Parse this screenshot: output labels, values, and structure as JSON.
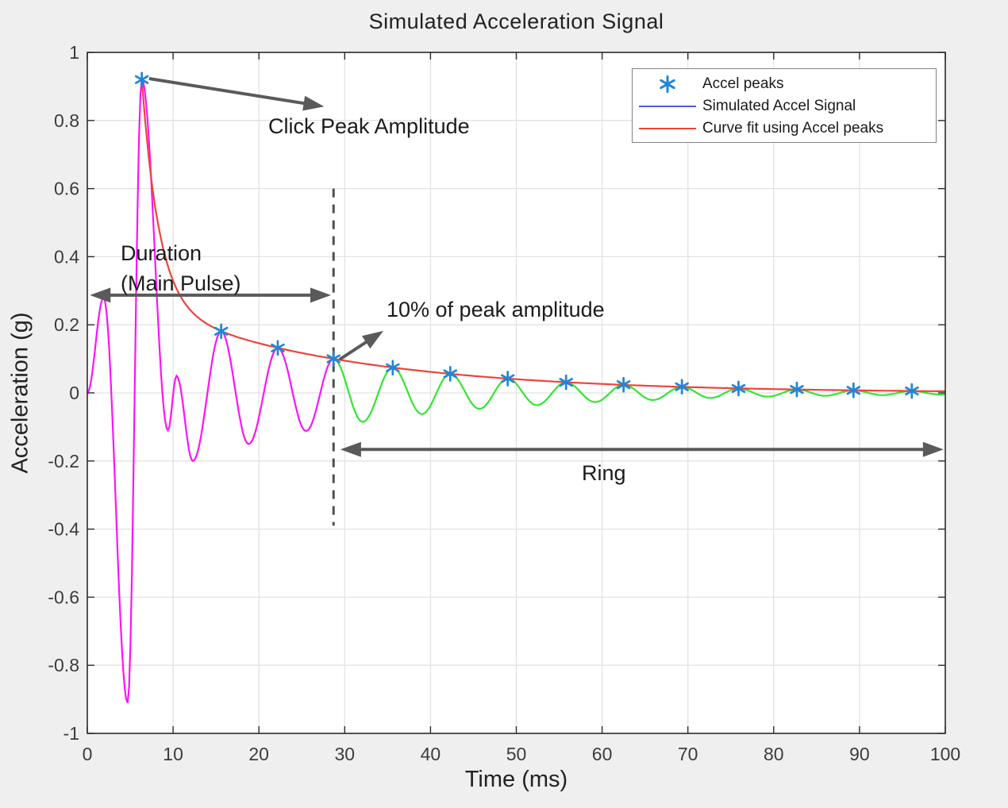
{
  "title": "Simulated Acceleration Signal",
  "axes": {
    "xlabel": "Time (ms)",
    "ylabel": "Acceleration (g)"
  },
  "legend": {
    "entries": [
      {
        "label": "Accel peaks",
        "marker": "asterisk"
      },
      {
        "label": "Simulated Accel Signal",
        "marker": "line"
      },
      {
        "label": "Curve fit using Accel peaks",
        "marker": "line"
      }
    ]
  },
  "annotations": {
    "click_peak": "Click Peak Amplitude",
    "duration_line1": "Duration",
    "duration_line2": "(Main Pulse)",
    "ten_percent": "10% of peak amplitude",
    "ring": "Ring"
  },
  "colors": {
    "peaks_marker": "#1f86d8",
    "signal_legend_line": "#5457e8",
    "fit_line": "#ee443b",
    "main_pulse": "#fa14fa",
    "ring_segment": "#33e633",
    "arrow": "#5a5a5a",
    "dashed_line": "#4f4f4f",
    "grid": "#e2e2e2",
    "axis": "#2b2b2b"
  },
  "chart_data": {
    "type": "line",
    "title": "Simulated Acceleration Signal",
    "xlabel": "Time (ms)",
    "ylabel": "Acceleration (g)",
    "xlim": [
      0,
      100
    ],
    "ylim": [
      -1,
      1
    ],
    "xticks": [
      0,
      10,
      20,
      30,
      40,
      50,
      60,
      70,
      80,
      90,
      100
    ],
    "yticks": [
      -1,
      -0.8,
      -0.6,
      -0.4,
      -0.2,
      0,
      0.2,
      0.4,
      0.6,
      0.8,
      1
    ],
    "grid": true,
    "legend_position": "top-right",
    "split_time_ms": 28.7,
    "series": [
      {
        "name": "Simulated Accel Signal",
        "style": "oscillation-through-extrema",
        "color_main_pulse": "#fa14fa",
        "color_ring": "#33e633",
        "extrema": [
          [
            0,
            0
          ],
          [
            1.9,
            0.28
          ],
          [
            4.7,
            -0.91
          ],
          [
            6.35,
            0.92
          ],
          [
            9.4,
            -0.11
          ],
          [
            10.4,
            0.05
          ],
          [
            12.3,
            -0.2
          ],
          [
            15.6,
            0.181
          ],
          [
            18.8,
            -0.15
          ],
          [
            22.2,
            0.132
          ],
          [
            25.5,
            -0.112
          ],
          [
            28.7,
            0.1
          ],
          [
            32.1,
            -0.085
          ],
          [
            35.6,
            0.074
          ],
          [
            39,
            -0.062
          ],
          [
            42.3,
            0.056
          ],
          [
            45.7,
            -0.047
          ],
          [
            49,
            0.042
          ],
          [
            52.4,
            -0.036
          ],
          [
            55.8,
            0.031
          ],
          [
            59.2,
            -0.027
          ],
          [
            62.5,
            0.024
          ],
          [
            65.9,
            -0.021
          ],
          [
            69.3,
            0.018
          ],
          [
            72.6,
            -0.015
          ],
          [
            75.9,
            0.013
          ],
          [
            79.3,
            -0.011
          ],
          [
            82.7,
            0.01
          ],
          [
            86,
            -0.0085
          ],
          [
            89.3,
            0.0075
          ],
          [
            92.7,
            -0.0065
          ],
          [
            96.1,
            0.0056
          ],
          [
            99.4,
            -0.005
          ],
          [
            100,
            -0.004
          ]
        ]
      },
      {
        "name": "Curve fit using Accel peaks",
        "model": "a1*exp(-t/tau1) + a2*exp(-t/tau2)",
        "params": {
          "a1": 15.8,
          "tau1": 2.0,
          "a2": 0.341,
          "tau2": 23.4
        },
        "t_range": [
          6.35,
          100
        ],
        "color": "#ee443b"
      },
      {
        "name": "Accel peaks",
        "marker": "asterisk",
        "color": "#1f86d8",
        "points": [
          [
            6.35,
            0.92
          ],
          [
            15.6,
            0.181
          ],
          [
            22.2,
            0.132
          ],
          [
            28.7,
            0.1
          ],
          [
            35.6,
            0.074
          ],
          [
            42.3,
            0.056
          ],
          [
            49,
            0.042
          ],
          [
            55.8,
            0.031
          ],
          [
            62.5,
            0.024
          ],
          [
            69.3,
            0.018
          ],
          [
            75.9,
            0.013
          ],
          [
            82.7,
            0.01
          ],
          [
            89.3,
            0.0075
          ],
          [
            96.1,
            0.0056
          ]
        ]
      }
    ],
    "threshold_line": {
      "x": 28.7,
      "y_from": 0.6,
      "y_to": -0.39,
      "style": "dashed"
    },
    "arrows": [
      {
        "name": "click-peak-arrow",
        "from": [
          7.2,
          0.923
        ],
        "to": [
          27.6,
          0.841
        ],
        "heads": "end"
      },
      {
        "name": "duration-arrow",
        "from": [
          0.3,
          0.287
        ],
        "to": [
          28.4,
          0.287
        ],
        "heads": "both"
      },
      {
        "name": "ten-percent-arrow",
        "from": [
          29.4,
          0.098
        ],
        "to": [
          34.5,
          0.182
        ],
        "heads": "end"
      },
      {
        "name": "ring-arrow",
        "from": [
          29.5,
          -0.166
        ],
        "to": [
          99.8,
          -0.166
        ],
        "heads": "both"
      }
    ]
  }
}
